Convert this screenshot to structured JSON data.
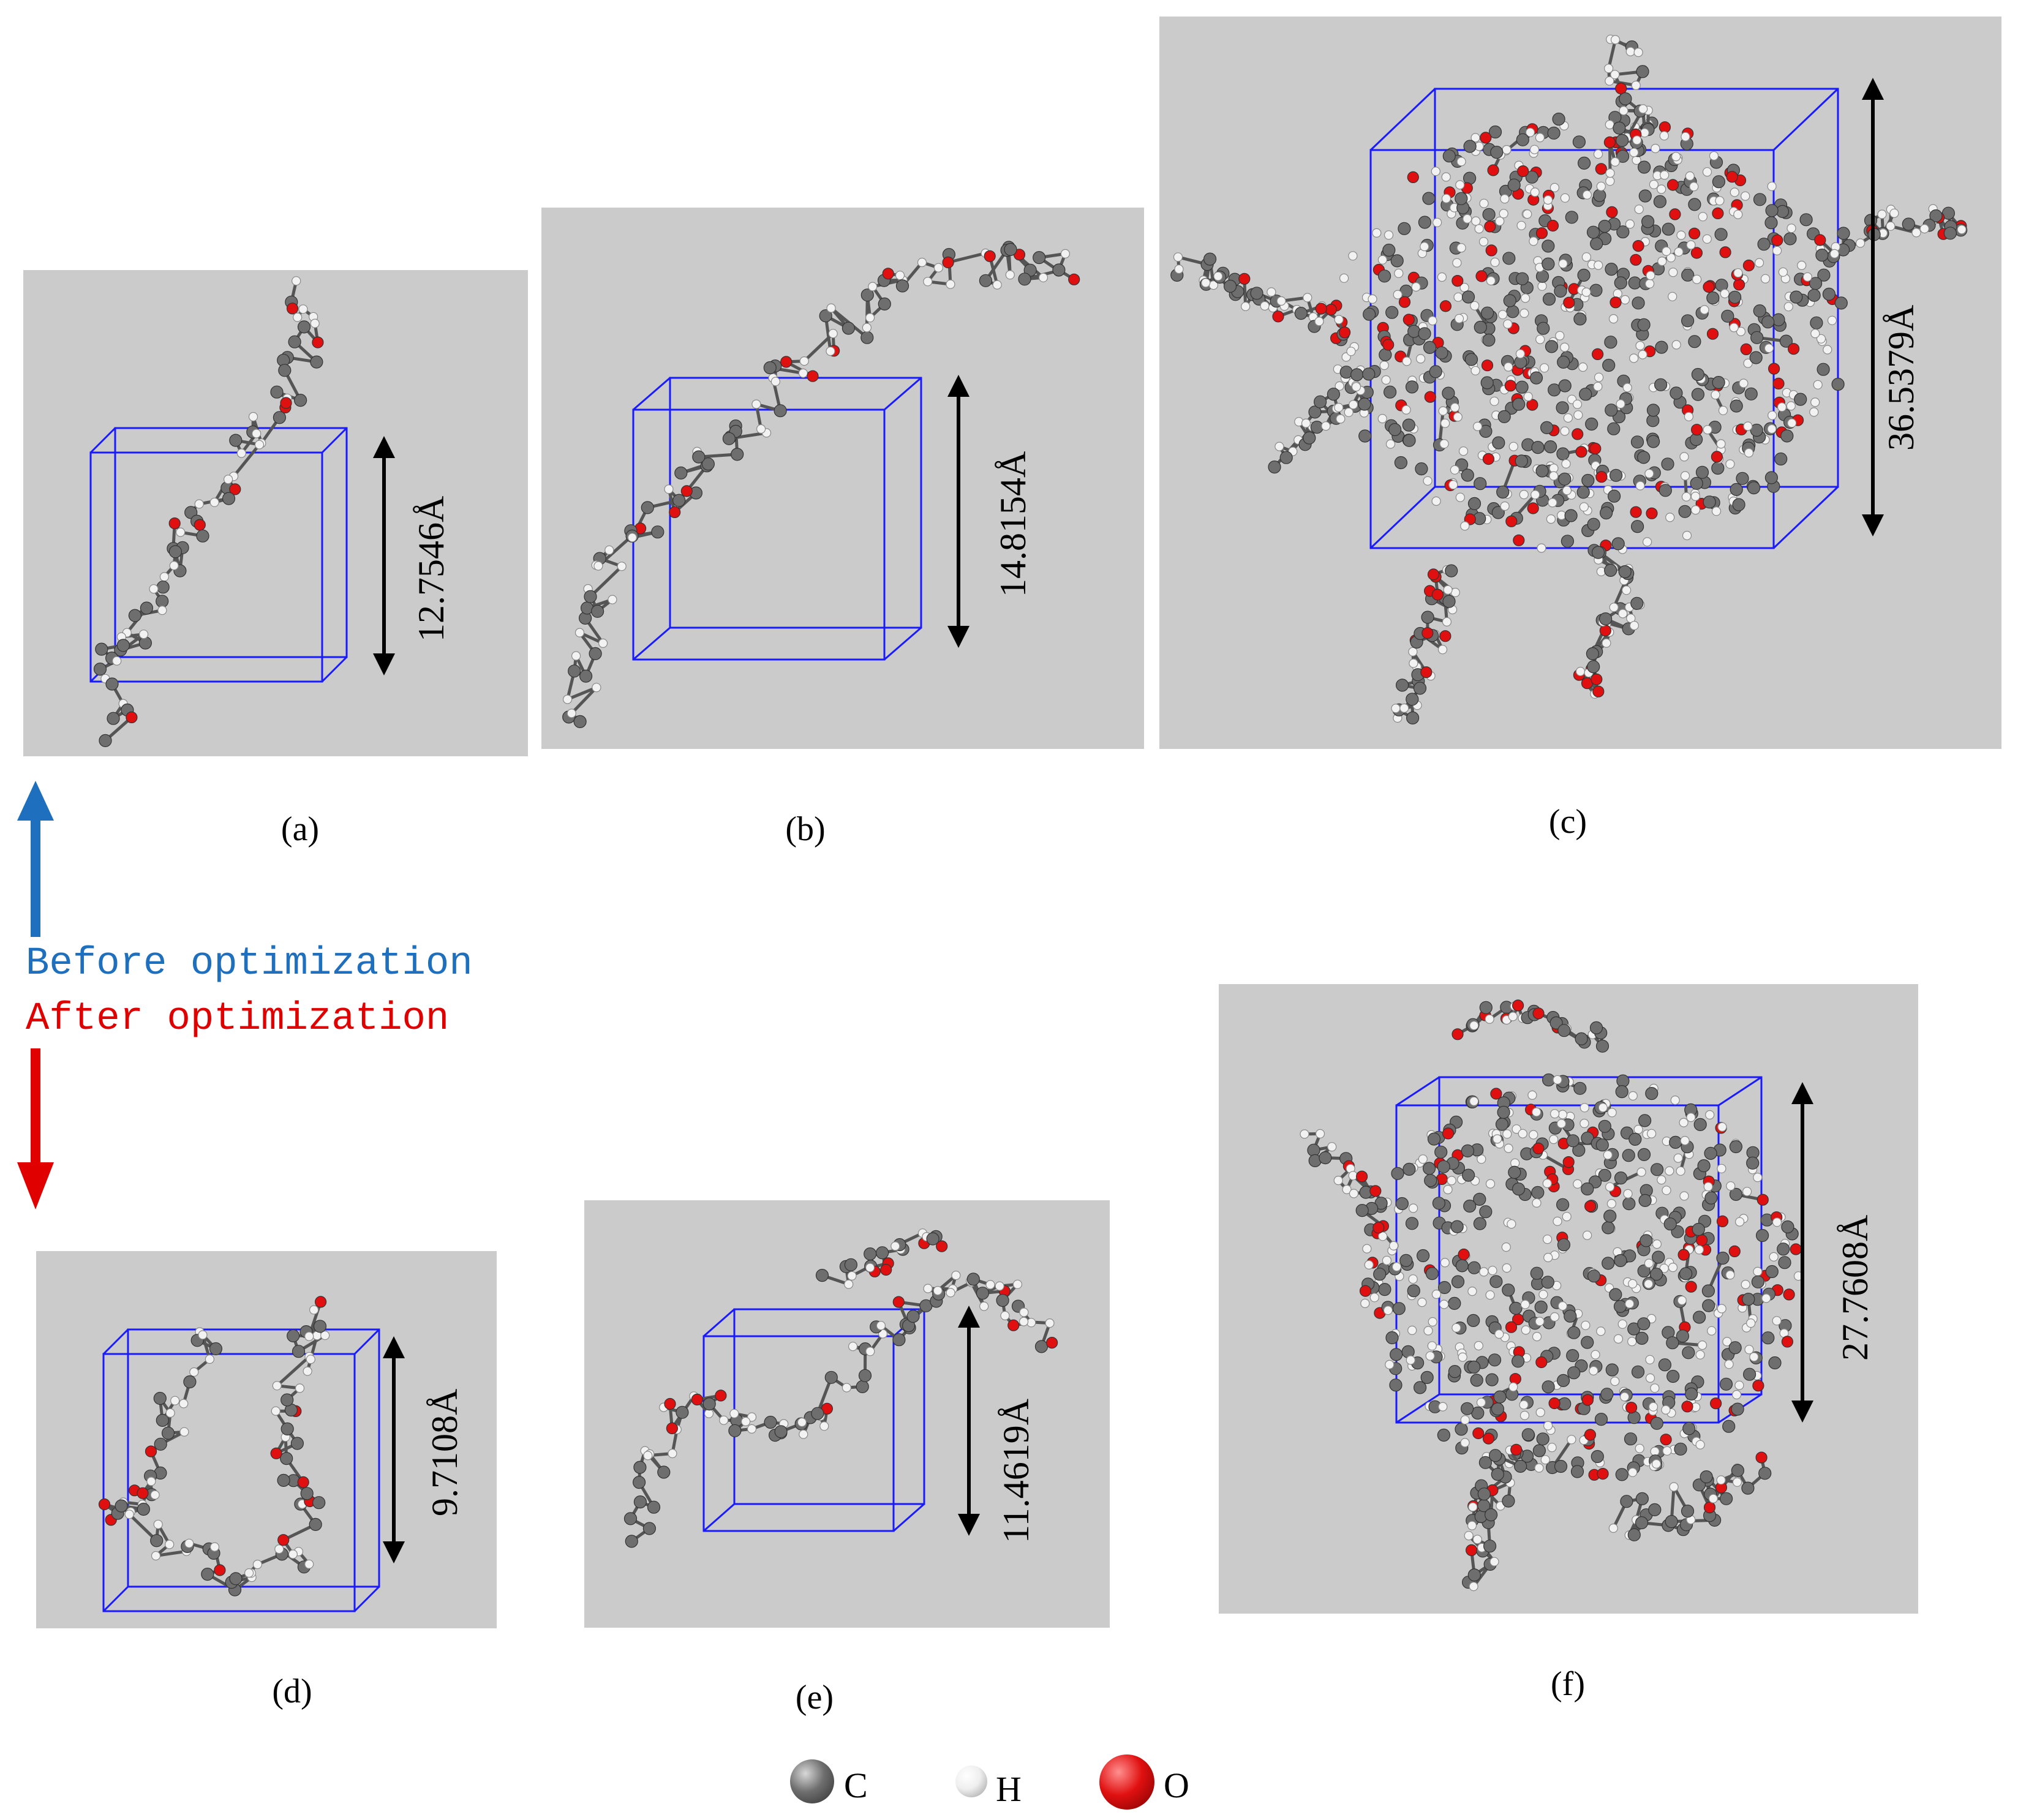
{
  "legend_text": {
    "before": "Before optimization",
    "after": "After optimization"
  },
  "colors": {
    "before": "#1f6fbf",
    "after": "#e00000",
    "panel_bg": "#cbcbcb",
    "box": "#1a1aff",
    "carbon": "#6e6e6e",
    "hydrogen": "#f2f2f2",
    "oxygen": "#e01010"
  },
  "panels": [
    {
      "id": "a",
      "caption": "(a)",
      "dimension": "12.7546Å"
    },
    {
      "id": "b",
      "caption": "(b)",
      "dimension": "14.8154Å"
    },
    {
      "id": "c",
      "caption": "(c)",
      "dimension": "36.5379Å"
    },
    {
      "id": "d",
      "caption": "(d)",
      "dimension": "9.7108Å"
    },
    {
      "id": "e",
      "caption": "(e)",
      "dimension": "11.4619Å"
    },
    {
      "id": "f",
      "caption": "(f)",
      "dimension": "27.7608Å"
    }
  ],
  "atom_legend": [
    {
      "symbol": "C",
      "color": "#6e6e6e"
    },
    {
      "symbol": "H",
      "color": "#f2f2f2"
    },
    {
      "symbol": "O",
      "color": "#e01010"
    }
  ]
}
